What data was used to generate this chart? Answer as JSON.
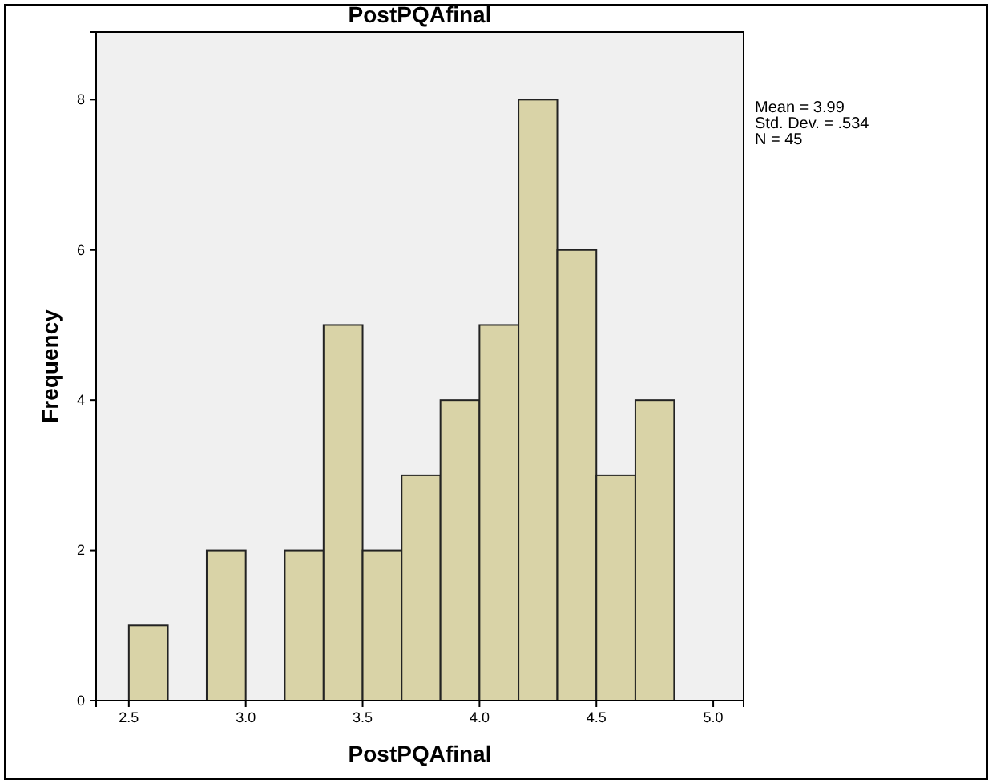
{
  "chart_data": {
    "type": "histogram",
    "title": "PostPQAfinal",
    "xlabel": "PostPQAfinal",
    "ylabel": "Frequency",
    "bins": [
      2.5,
      2.667,
      2.833,
      3.0,
      3.167,
      3.333,
      3.5,
      3.667,
      3.833,
      4.0,
      4.167,
      4.333,
      4.5,
      4.667,
      4.833
    ],
    "values": [
      1,
      0,
      2,
      0,
      2,
      5,
      2,
      3,
      4,
      5,
      8,
      6,
      3,
      4
    ],
    "color": "#d9d3a7",
    "xlim": [
      2.36,
      5.13
    ],
    "xticks": [
      {
        "value": 2.5,
        "label": "2.5"
      },
      {
        "value": 3.0,
        "label": "3.0"
      },
      {
        "value": 3.5,
        "label": "3.5"
      },
      {
        "value": 4.0,
        "label": "4.0"
      },
      {
        "value": 4.5,
        "label": "4.5"
      },
      {
        "value": 5.0,
        "label": "5.0"
      }
    ],
    "ylim": [
      0,
      8.9
    ],
    "yticks": [
      0,
      2,
      4,
      6,
      8
    ],
    "grid": false,
    "annotations": [
      "Mean = 3.99",
      "Std. Dev. = .534",
      "N = 45"
    ]
  }
}
